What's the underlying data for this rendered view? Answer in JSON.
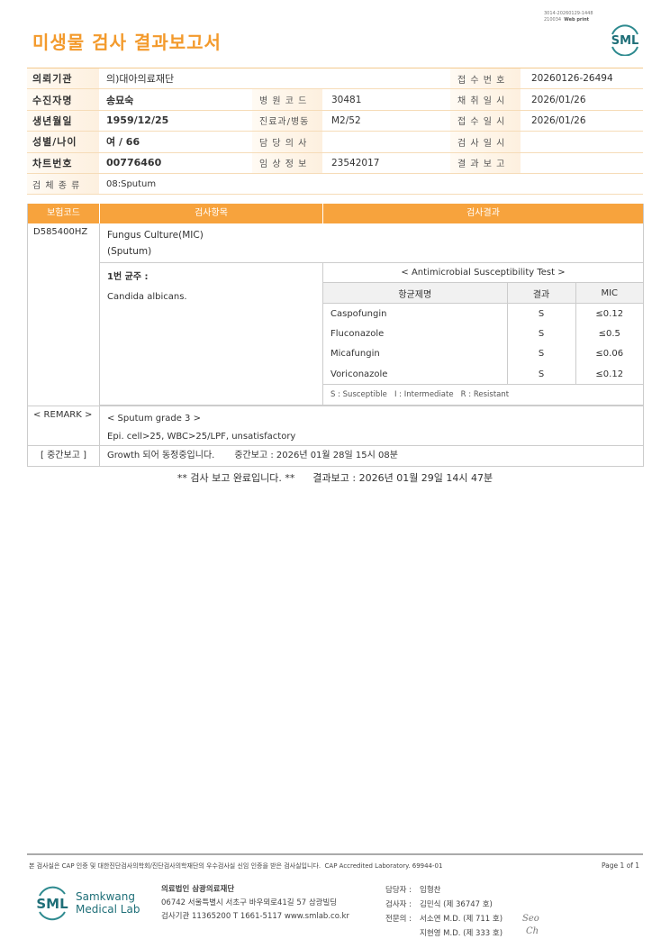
{
  "header": {
    "title": "미생물 검사 결과보고서",
    "print_id": "3014-20260129-1448",
    "print_code": "210034",
    "print_mode": "Web print",
    "logo_text": "SML"
  },
  "info": {
    "rows": [
      [
        {
          "label": "의뢰기관",
          "value": "의)대아의료재단"
        },
        null,
        {
          "label": "접 수 번 호",
          "value": "20260126-26494"
        }
      ],
      [
        {
          "label": "수진자명",
          "value": "송묘숙"
        },
        {
          "label": "병 원 코 드",
          "value": "30481"
        },
        {
          "label": "채 취 일 시",
          "value": "2026/01/26"
        }
      ],
      [
        {
          "label": "생년월일",
          "value": "1959/12/25"
        },
        {
          "label": "진료과/병동",
          "value": "M2/52"
        },
        {
          "label": "접 수 일 시",
          "value": "2026/01/26"
        }
      ],
      [
        {
          "label": "성별/나이",
          "value": "여 / 66"
        },
        {
          "label": "담 당 의 사",
          "value": ""
        },
        {
          "label": "검 사 일 시",
          "value": ""
        }
      ],
      [
        {
          "label": "차트번호",
          "value": "00776460"
        },
        {
          "label": "임 상 정 보",
          "value": "23542017"
        },
        {
          "label": "결 과 보 고",
          "value": ""
        }
      ],
      [
        {
          "label": "검 체 종 류",
          "value": "08:Sputum"
        },
        null,
        null
      ]
    ]
  },
  "results": {
    "headers": [
      "보험코드",
      "검사항목",
      "검사결과"
    ],
    "code": "D585400HZ",
    "test_name": "Fungus Culture(MIC)",
    "specimen": "(Sputum)",
    "isolate_label": "1번 균주 :",
    "isolate": "Candida albicans.",
    "ast_title": "< Antimicrobial Susceptibility Test >",
    "ast_headers": [
      "항균제명",
      "결과",
      "MIC"
    ],
    "ast_rows": [
      {
        "drug": "Caspofungin",
        "result": "S",
        "mic": "≤0.12"
      },
      {
        "drug": "Fluconazole",
        "result": "S",
        "mic": "≤0.5"
      },
      {
        "drug": "Micafungin",
        "result": "S",
        "mic": "≤0.06"
      },
      {
        "drug": "Voriconazole",
        "result": "S",
        "mic": "≤0.12"
      }
    ],
    "legend": "S : Susceptible   I : Intermediate   R : Resistant",
    "remark_label": "< REMARK >",
    "remark_title": "< Sputum grade 3 >",
    "remark_text": "Epi. cell>25, WBC>25/LPF, unsatisfactory",
    "interim_label": "[ 중간보고 ]",
    "interim_text": "Growth 되어 동정중입니다.",
    "interim_time": "중간보고 : 2026년 01월 28일 15시 08분",
    "final_note": "** 검사 보고 완료입니다. **",
    "final_time": "결과보고 : 2026년 01월 29일 14시 47분"
  },
  "footer": {
    "accreditation": "본 검사실은 CAP 인증 및 대한진단검사의학회/진단검사의학재단의 우수검사실 신임 인증을 받은 검사실입니다.  CAP Accredited Laboratory. 69944-01",
    "page": "Page 1 of 1",
    "logo_short": "SML",
    "logo_line1": "Samkwang",
    "logo_line2": "Medical Lab",
    "org": "의료법인 삼광의료재단",
    "address": "06742 서울특별시 서초구 바우뫼로41길 57 삼광빌딩",
    "contact": "검사기관 11365200  T 1661-5117  www.smlab.co.kr",
    "staff": [
      {
        "role": "담당자 :",
        "name": "임형찬"
      },
      {
        "role": "검사자 :",
        "name": "김민식 (제 36747 호)"
      },
      {
        "role": "전문의 :",
        "name": "서소연 M.D. (제 711 호)"
      },
      {
        "role": "",
        "name": "지현영 M.D. (제 333 호)"
      }
    ]
  },
  "colors": {
    "accent": "#f39a2c",
    "table_header": "#f7a33d",
    "logo": "#1f6f78"
  }
}
